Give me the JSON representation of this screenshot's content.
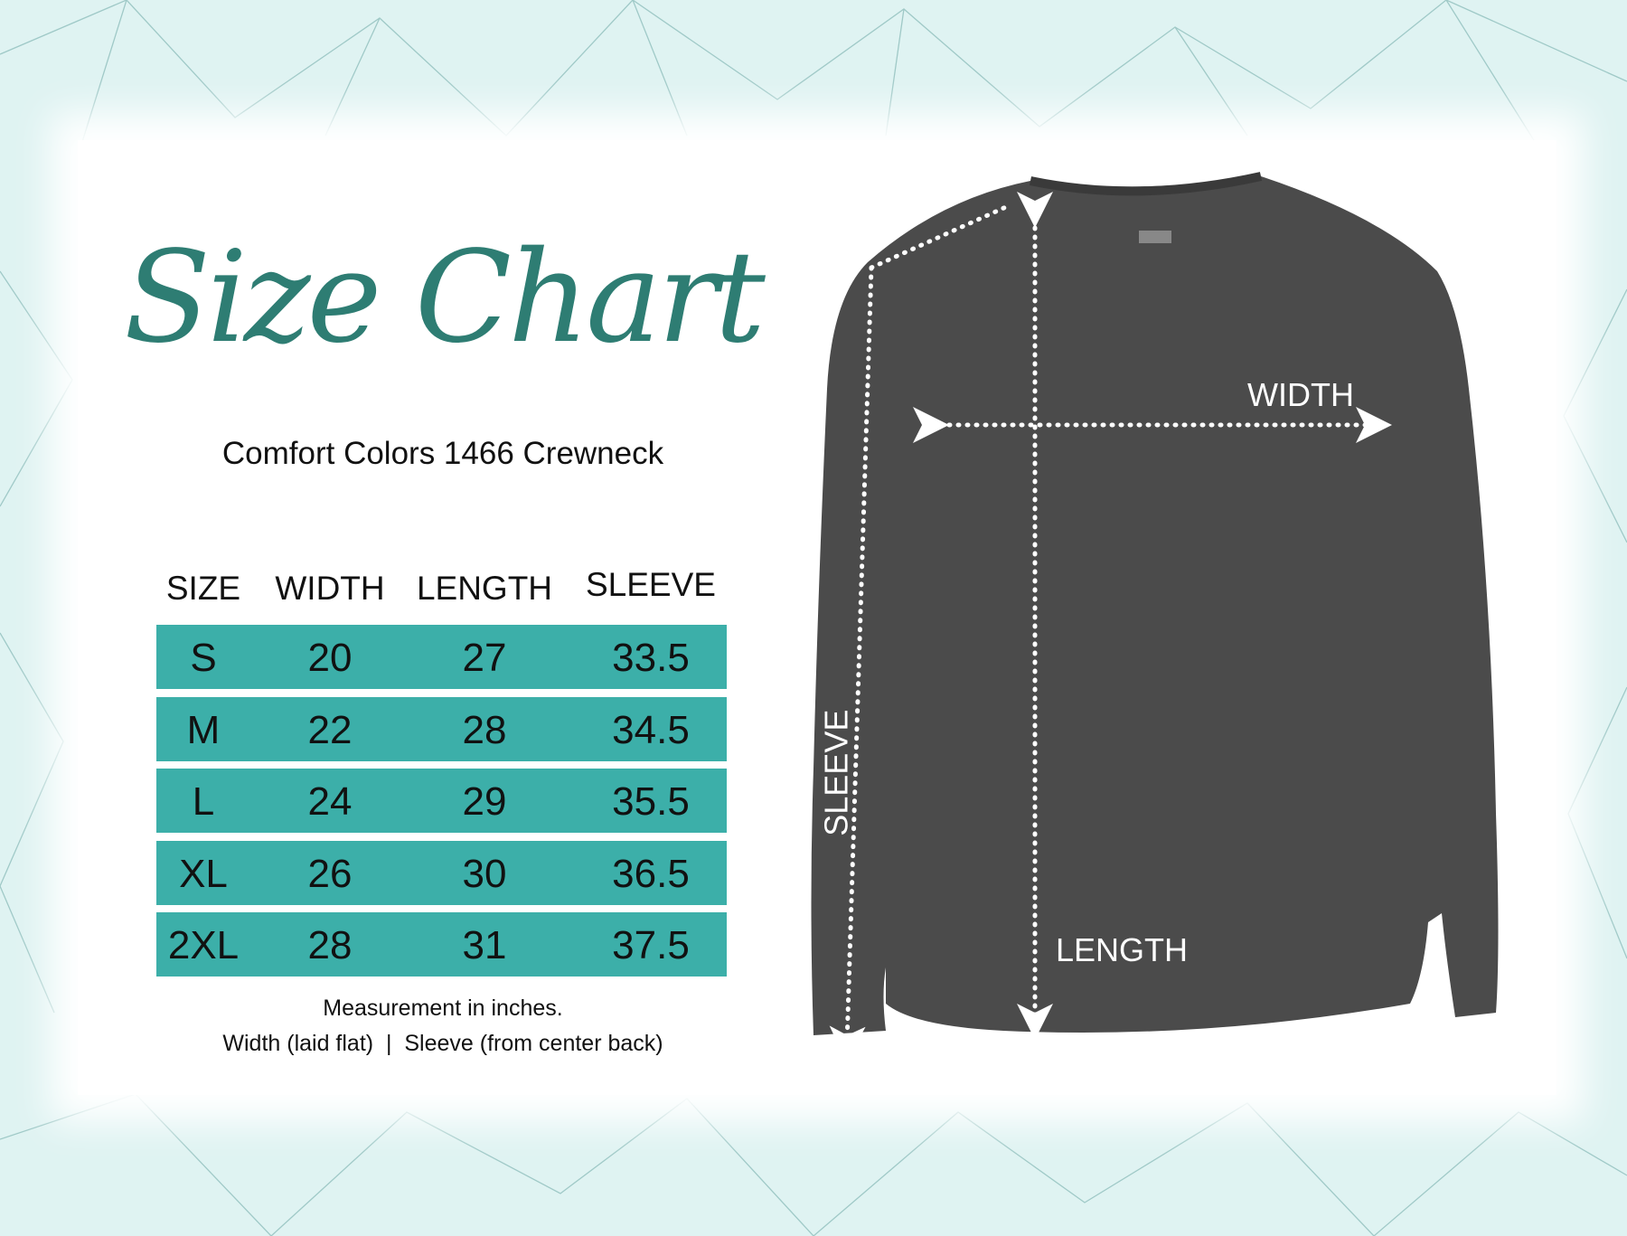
{
  "title": "Size Chart",
  "subtitle": "Comfort Colors 1466 Crewneck",
  "table": {
    "headers": [
      "SIZE",
      "WIDTH",
      "LENGTH",
      "SLEEVE"
    ],
    "rows": [
      [
        "S",
        "20",
        "27",
        "33.5"
      ],
      [
        "M",
        "22",
        "28",
        "34.5"
      ],
      [
        "L",
        "24",
        "29",
        "35.5"
      ],
      [
        "XL",
        "26",
        "30",
        "36.5"
      ],
      [
        "2XL",
        "28",
        "31",
        "37.5"
      ]
    ]
  },
  "notes": {
    "line1": "Measurement in inches.",
    "line2": "Width (laid flat)  |  Sleeve (from center back)"
  },
  "diagram": {
    "width_label": "WIDTH",
    "length_label": "LENGTH",
    "sleeve_label": "SLEEVE",
    "garment_color": "#4a4a4a"
  },
  "colors": {
    "accent": "#2e7d73",
    "table_row": "#3cafa9",
    "background": "#dff3f2"
  }
}
